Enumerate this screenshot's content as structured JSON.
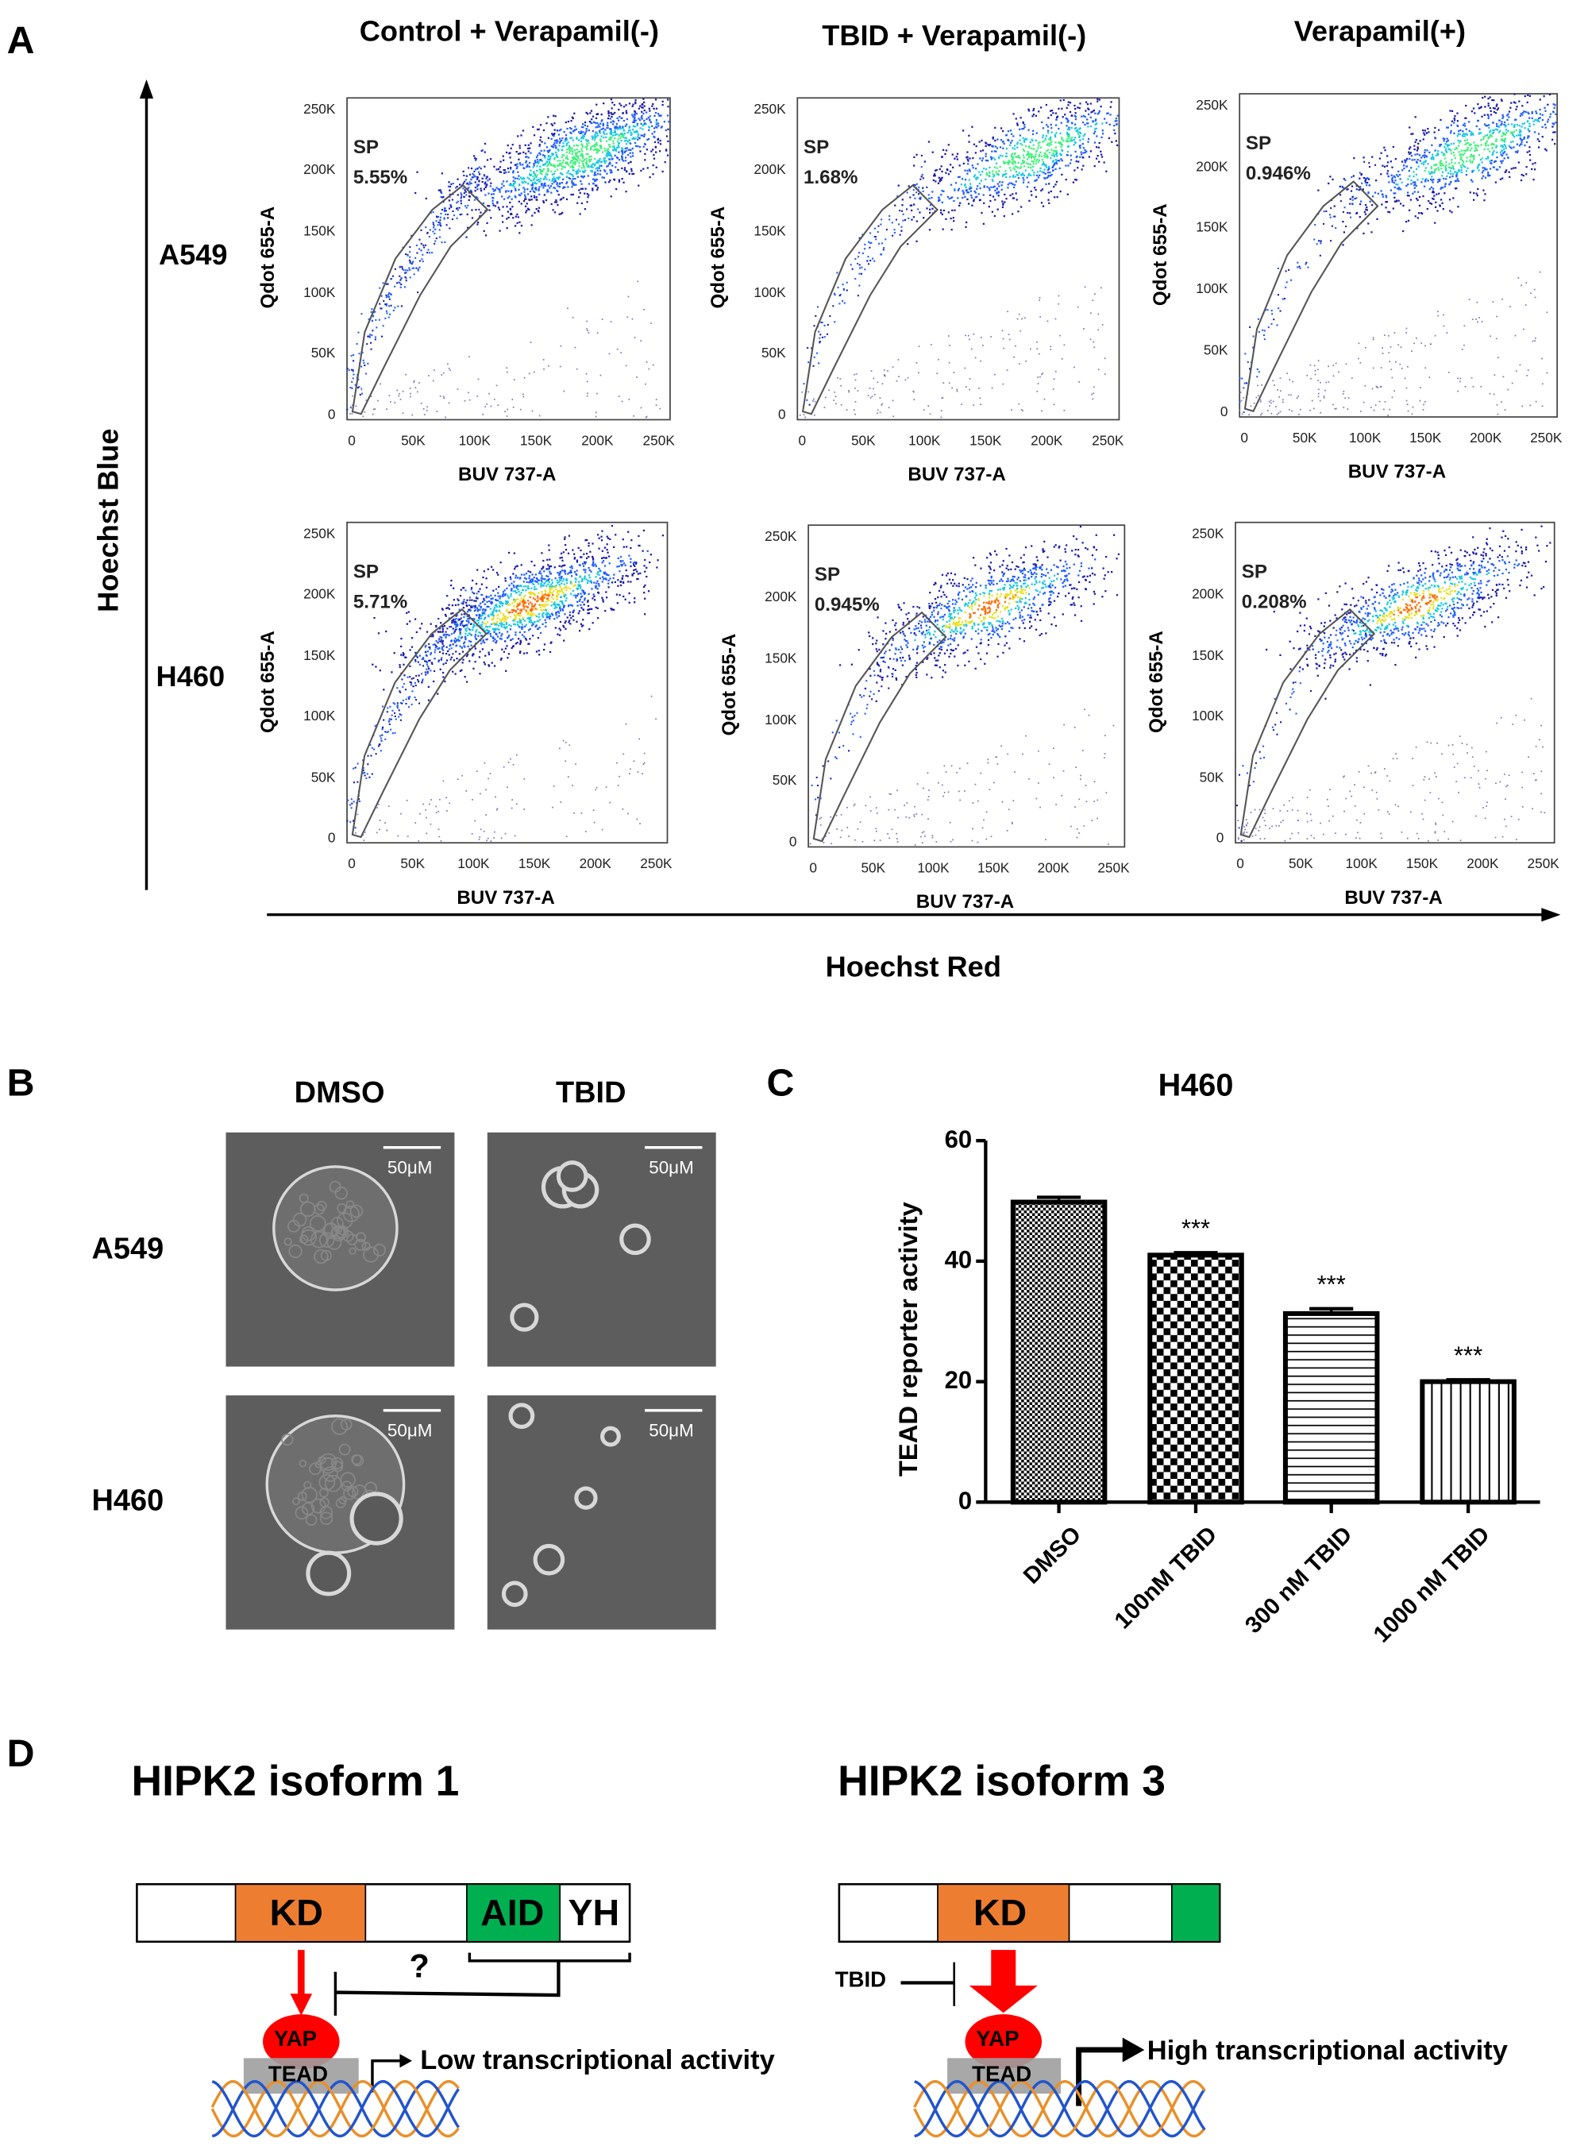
{
  "panel_labels": {
    "a": "A",
    "b": "B",
    "c": "C",
    "d": "D"
  },
  "panel_a": {
    "column_titles": [
      "Control + Verapamil(-)",
      "TBID + Verapamil(-)",
      "Verapamil(+)"
    ],
    "row_labels": [
      "A549",
      "H460"
    ],
    "y_axis_arrow_label": "Hoechst Blue",
    "x_axis_arrow_label": "Hoechst Red",
    "plots": [
      {
        "row": "A549",
        "column": "Control + Verapamil(-)",
        "gate_label": "SP",
        "gate_percent": "5.55%"
      },
      {
        "row": "A549",
        "column": "TBID + Verapamil(-)",
        "gate_label": "SP",
        "gate_percent": "1.68%"
      },
      {
        "row": "A549",
        "column": "Verapamil(+)",
        "gate_label": "SP",
        "gate_percent": "0.946%"
      },
      {
        "row": "H460",
        "column": "Control + Verapamil(-)",
        "gate_label": "SP",
        "gate_percent": "5.71%"
      },
      {
        "row": "H460",
        "column": "TBID + Verapamil(-)",
        "gate_label": "SP",
        "gate_percent": "0.945%"
      },
      {
        "row": "H460",
        "column": "Verapamil(+)",
        "gate_label": "SP",
        "gate_percent": "0.208%"
      }
    ],
    "xlabel": "BUV 737-A",
    "ylabel": "Qdot 655-A",
    "x_ticks": [
      "0",
      "50K",
      "100K",
      "150K",
      "200K",
      "250K"
    ],
    "y_ticks": [
      "0",
      "50K",
      "100K",
      "150K",
      "200K",
      "250K"
    ],
    "density_colors": [
      "#1a1aa8",
      "#1e5cff",
      "#19c8e0",
      "#3ef07a",
      "#e8e020",
      "#ff6a00"
    ]
  },
  "panel_b": {
    "column_titles": [
      "DMSO",
      "TBID"
    ],
    "row_labels": [
      "A549",
      "H460"
    ],
    "scale_bar": "50μM"
  },
  "chart_data": {
    "type": "bar",
    "title": "H460",
    "ylabel": "TEAD reporter activity",
    "xlabel": "",
    "categories": [
      "DMSO",
      "100nM TBID",
      "300 nM TBID",
      "1000 nM TBID"
    ],
    "values": [
      49.8,
      41.0,
      31.3,
      20.0
    ],
    "errors": [
      0.8,
      0.4,
      0.8,
      0.3
    ],
    "significance": [
      "",
      "***",
      "***",
      "***"
    ],
    "patterns": [
      "fine-checker",
      "coarse-checker",
      "horizontal-lines",
      "vertical-lines"
    ],
    "ylim": [
      0,
      60
    ],
    "y_ticks": [
      0,
      20,
      40,
      60
    ],
    "grid": false
  },
  "panel_d": {
    "isoform1": {
      "title": "HIPK2 isoform 1",
      "domains": [
        "KD",
        "AID",
        "YH"
      ],
      "question": "?",
      "yap": "YAP",
      "tead": "TEAD",
      "activity": "Low transcriptional activity"
    },
    "isoform3": {
      "title": "HIPK2 isoform 3",
      "domains": [
        "KD"
      ],
      "inhibitor": "TBID",
      "yap": "YAP",
      "tead": "TEAD",
      "activity": "High transcriptional activity"
    },
    "colors": {
      "kd": "#ed7d31",
      "aid": "#00b050",
      "yap": "#ff0000",
      "tead": "#9e9e9e",
      "arrow": "#ff0000"
    }
  }
}
